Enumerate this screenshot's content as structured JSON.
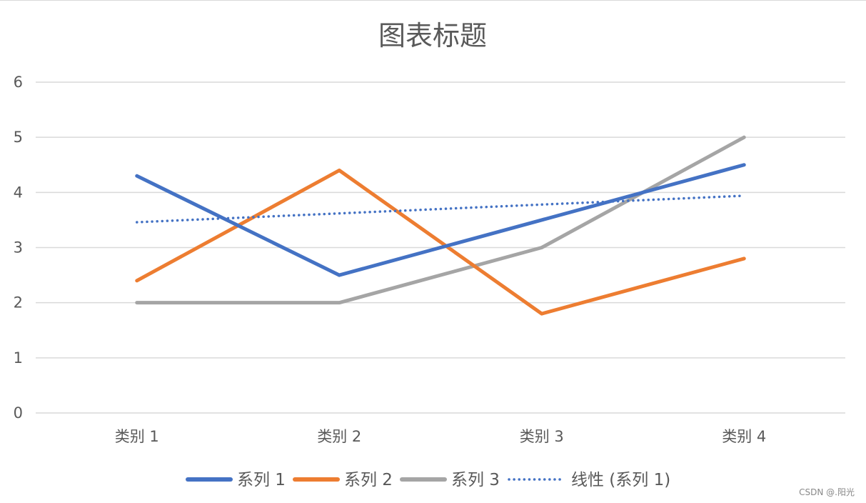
{
  "watermark": "CSDN @.阳光",
  "chart_data": {
    "type": "line",
    "title": "图表标题",
    "xlabel": "",
    "ylabel": "",
    "categories": [
      "类别 1",
      "类别 2",
      "类别 3",
      "类别 4"
    ],
    "ylim": [
      0,
      6
    ],
    "yticks": [
      "0",
      "1",
      "2",
      "3",
      "4",
      "5",
      "6"
    ],
    "grid": true,
    "legend_position": "bottom",
    "series": [
      {
        "name": "系列 1",
        "values": [
          4.3,
          2.5,
          3.5,
          4.5
        ],
        "color": "#4472C4",
        "style": "solid"
      },
      {
        "name": "系列 2",
        "values": [
          2.4,
          4.4,
          1.8,
          2.8
        ],
        "color": "#ED7D31",
        "style": "solid"
      },
      {
        "name": "系列 3",
        "values": [
          2,
          2,
          3,
          5
        ],
        "color": "#A5A5A5",
        "style": "solid"
      },
      {
        "name": "线性 (系列 1)",
        "values": [
          3.46,
          3.62,
          3.78,
          3.94
        ],
        "color": "#4472C4",
        "style": "dotted",
        "trendline": true
      }
    ]
  }
}
